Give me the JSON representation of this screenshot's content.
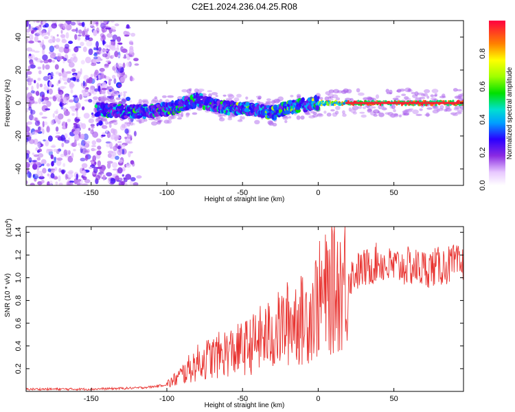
{
  "title": "C2E1.2024.236.04.25.R08",
  "chart_data": [
    {
      "type": "heatmap",
      "name": "spectrogram",
      "xlabel": "Height of straight line (km)",
      "ylabel": "Frequency (Hz)",
      "xlim": [
        -193,
        96
      ],
      "ylim": [
        -50,
        50
      ],
      "xticks": [
        -150,
        -100,
        -50,
        0,
        50
      ],
      "yticks": [
        -40,
        -20,
        0,
        20,
        40
      ],
      "colorbar": {
        "label": "Normalized spectral amplitude",
        "range": [
          0,
          1
        ],
        "ticks": [
          0.0,
          0.2,
          0.4,
          0.6,
          0.8
        ]
      },
      "trace_center_hz": [
        [
          -145,
          -4
        ],
        [
          -130,
          -5
        ],
        [
          -115,
          -5
        ],
        [
          -100,
          -4
        ],
        [
          -90,
          -1
        ],
        [
          -80,
          2
        ],
        [
          -70,
          -1
        ],
        [
          -60,
          -3
        ],
        [
          -50,
          -3
        ],
        [
          -40,
          -4
        ],
        [
          -30,
          -6
        ],
        [
          -20,
          -3
        ],
        [
          -10,
          -1
        ],
        [
          0,
          0
        ],
        [
          10,
          0
        ],
        [
          20,
          0
        ],
        [
          50,
          0
        ],
        [
          96,
          0
        ]
      ],
      "noise_region_km": [
        -193,
        -118
      ]
    },
    {
      "type": "line",
      "name": "snr",
      "xlabel": "Height of straight line (km)",
      "ylabel": "SNR (10 * v/v)",
      "y_multiplier": "(x10",
      "y_multiplier_exp": "4",
      "y_multiplier_close": ")",
      "xlim": [
        -193,
        96
      ],
      "ylim": [
        0,
        1.45
      ],
      "xticks": [
        -150,
        -100,
        -50,
        0,
        50
      ],
      "yticks": [
        0.2,
        0.4,
        0.6,
        0.8,
        1.0,
        1.2,
        1.4
      ],
      "color": "#e8322f",
      "series": [
        {
          "name": "SNR",
          "x": [
            -193,
            -150,
            -120,
            -110,
            -100,
            -95,
            -90,
            -85,
            -80,
            -75,
            -70,
            -65,
            -60,
            -55,
            -50,
            -45,
            -40,
            -35,
            -30,
            -25,
            -20,
            -15,
            -10,
            -5,
            0,
            5,
            10,
            15,
            20,
            25,
            30,
            35,
            40,
            45,
            50,
            60,
            70,
            80,
            90,
            96
          ],
          "y": [
            0.02,
            0.02,
            0.03,
            0.04,
            0.06,
            0.1,
            0.15,
            0.2,
            0.25,
            0.28,
            0.3,
            0.32,
            0.35,
            0.35,
            0.38,
            0.4,
            0.45,
            0.48,
            0.5,
            0.55,
            0.6,
            0.65,
            0.62,
            0.7,
            0.8,
            0.85,
            0.9,
            0.95,
            1.0,
            1.05,
            1.08,
            1.1,
            1.15,
            1.1,
            1.1,
            1.1,
            1.08,
            1.1,
            1.12,
            1.1
          ]
        }
      ]
    }
  ]
}
